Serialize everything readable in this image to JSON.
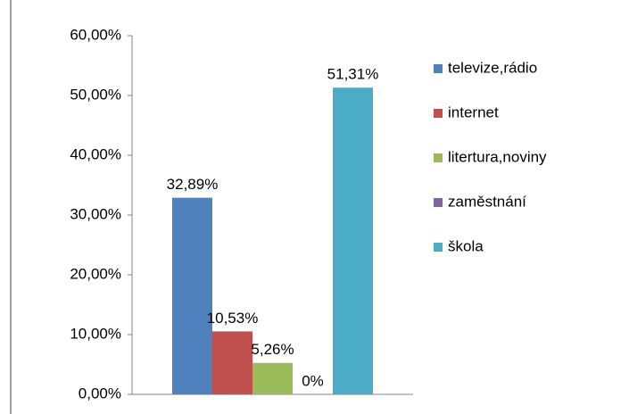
{
  "chart_data": {
    "type": "bar",
    "categories": [
      null
    ],
    "series": [
      {
        "name": "televize,rádio",
        "color": "#4f81bd",
        "values": [
          32.89
        ],
        "value_labels": [
          "32,89%"
        ]
      },
      {
        "name": "internet",
        "color": "#c0504d",
        "values": [
          10.53
        ],
        "value_labels": [
          "10,53%"
        ]
      },
      {
        "name": "litertura,noviny",
        "color": "#9bbb59",
        "values": [
          5.26
        ],
        "value_labels": [
          "5,26%"
        ]
      },
      {
        "name": "zaměstnání",
        "color": "#8064a2",
        "values": [
          0
        ],
        "value_labels": [
          "0%"
        ]
      },
      {
        "name": "škola",
        "color": "#4bacc6",
        "values": [
          51.31
        ],
        "value_labels": [
          "51,31%"
        ]
      }
    ],
    "ylim": [
      0,
      60
    ],
    "yticks": [
      {
        "value": 0,
        "label": "0,00%"
      },
      {
        "value": 10,
        "label": "10,00%"
      },
      {
        "value": 20,
        "label": "20,00%"
      },
      {
        "value": 30,
        "label": "30,00%"
      },
      {
        "value": 40,
        "label": "40,00%"
      },
      {
        "value": 50,
        "label": "50,00%"
      },
      {
        "value": 60,
        "label": "60,00%"
      }
    ],
    "grid": false,
    "legend": "right"
  }
}
